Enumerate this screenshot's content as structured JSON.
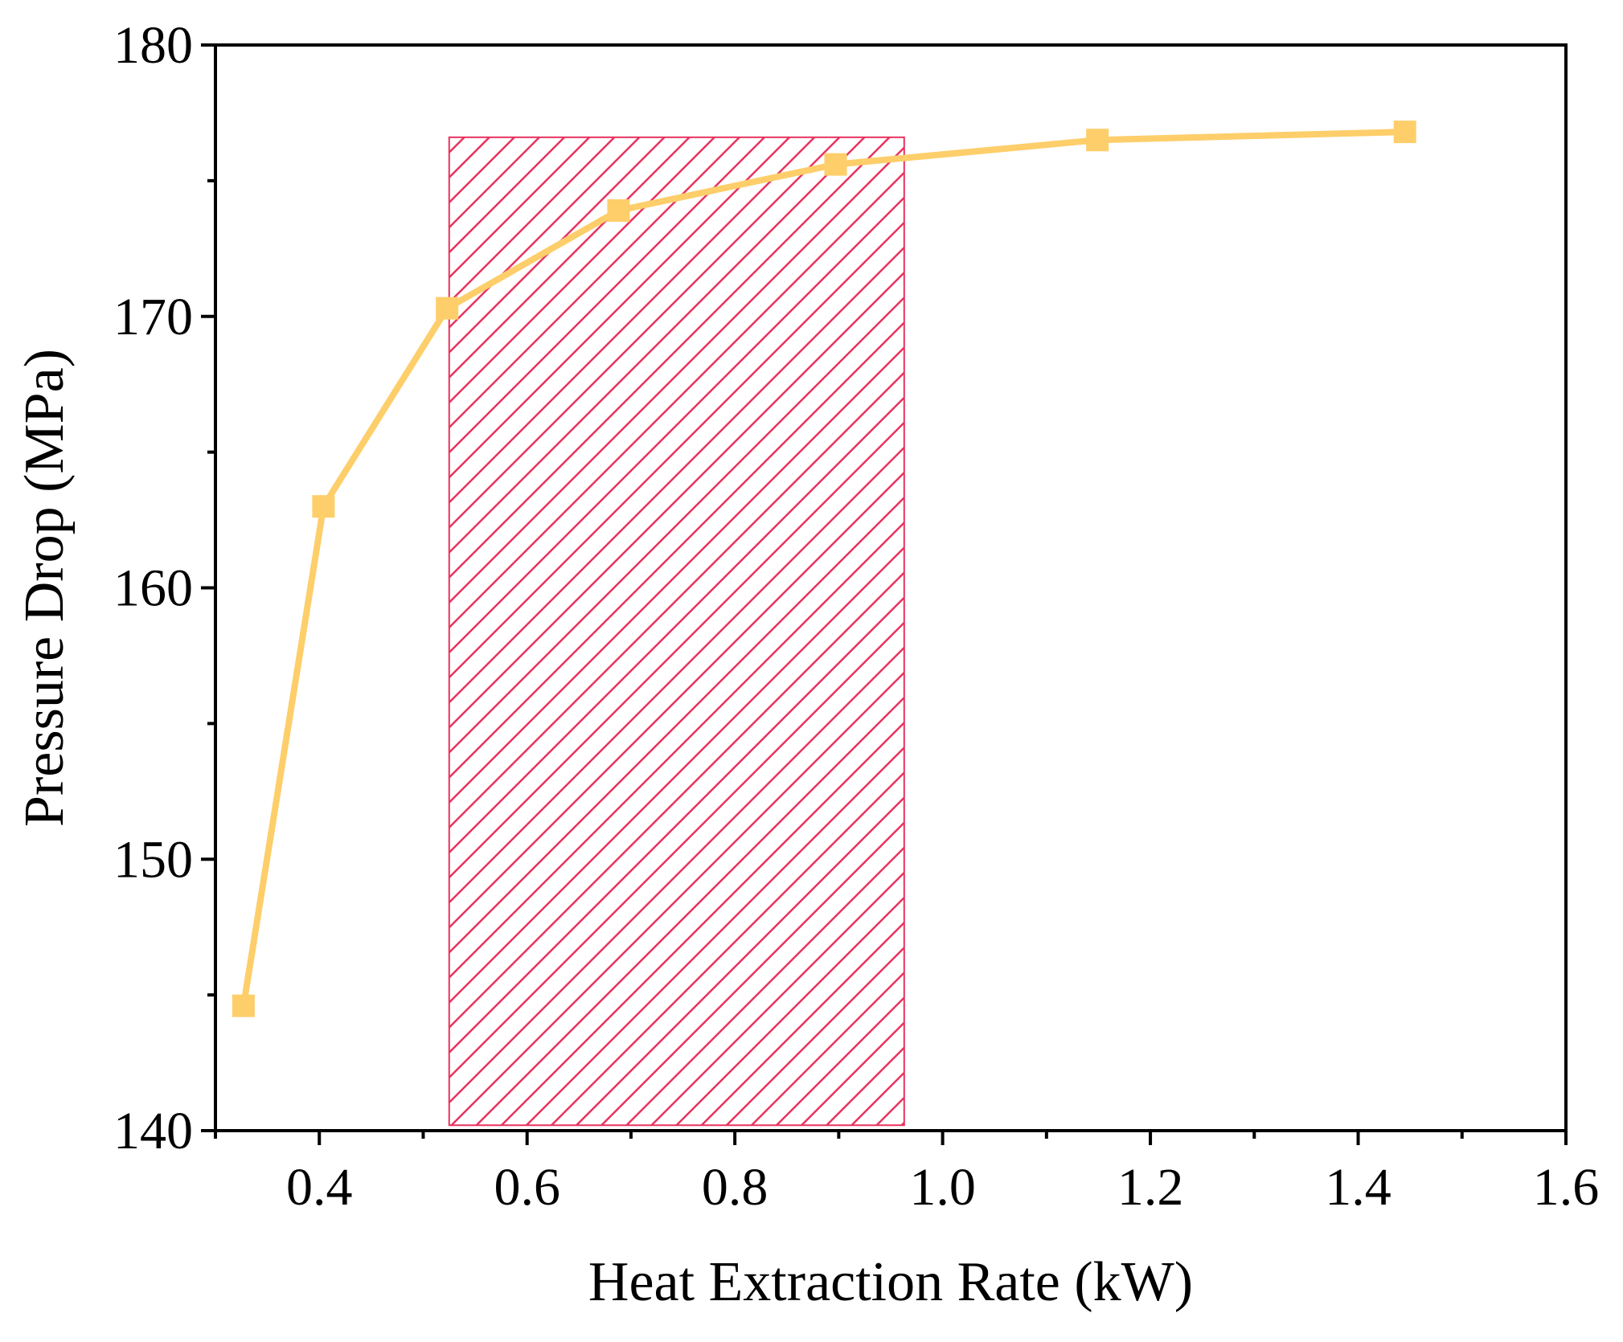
{
  "chart_data": {
    "type": "line",
    "title": "",
    "xlabel": "Heat Extraction Rate (kW)",
    "ylabel": "Pressure Drop (MPa)",
    "xlim": [
      0.3,
      1.6
    ],
    "ylim": [
      140,
      180
    ],
    "x_ticks": [
      0.4,
      0.6,
      0.8,
      1.0,
      1.2,
      1.4,
      1.6
    ],
    "x_tick_labels": [
      "0.4",
      "0.6",
      "0.8",
      "1.0",
      "1.2",
      "1.4",
      "1.6"
    ],
    "x_minor_ticks": [
      0.3,
      0.5,
      0.7,
      0.9,
      1.1,
      1.3,
      1.5
    ],
    "y_ticks": [
      140,
      150,
      160,
      170,
      180
    ],
    "y_tick_labels": [
      "140",
      "150",
      "160",
      "170",
      "180"
    ],
    "y_minor_ticks": [
      145,
      155,
      165,
      175
    ],
    "grid": false,
    "series": [
      {
        "name": "Pressure Drop",
        "color": "#FDCE6A",
        "marker": "square",
        "x": [
          0.327,
          0.404,
          0.523,
          0.688,
          0.897,
          1.149,
          1.445
        ],
        "y": [
          144.6,
          163.0,
          170.3,
          173.9,
          175.6,
          176.5,
          176.8
        ]
      }
    ],
    "shaded_region": {
      "x_range": [
        0.525,
        0.963
      ],
      "y_range": [
        140.2,
        176.6
      ],
      "fill": "hatched",
      "color": "#E8335F"
    }
  }
}
